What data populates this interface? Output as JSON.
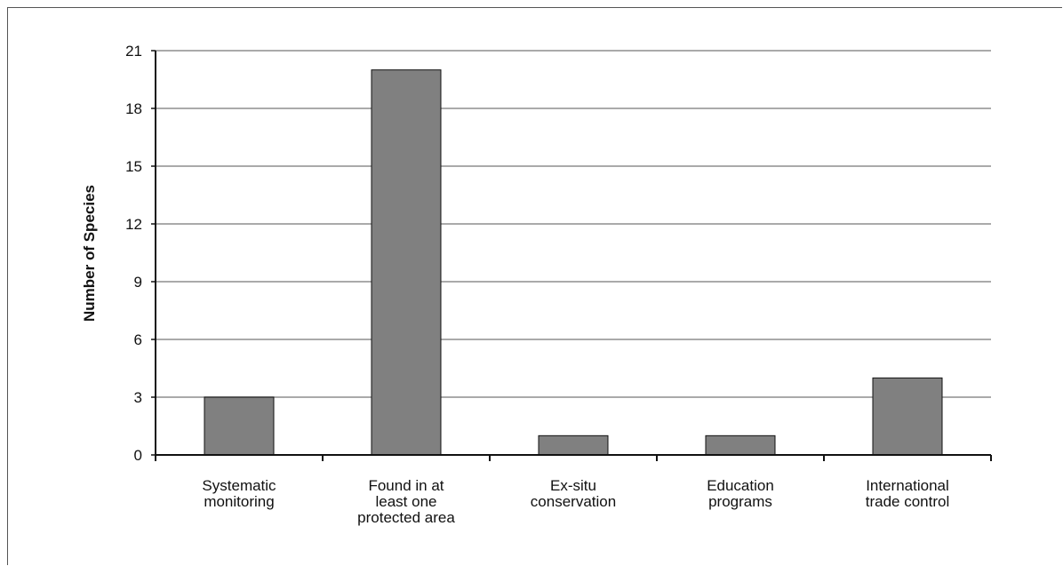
{
  "chart_data": {
    "type": "bar",
    "title": "",
    "xlabel": "",
    "ylabel": "Number of Species",
    "ylim": [
      0,
      21
    ],
    "yticks": [
      0,
      3,
      6,
      9,
      12,
      15,
      18,
      21
    ],
    "grid": true,
    "categories": [
      [
        "Systematic",
        "monitoring"
      ],
      [
        "Found in at",
        "least one",
        "protected area"
      ],
      [
        "Ex-situ",
        "conservation"
      ],
      [
        "Education",
        "programs"
      ],
      [
        "International",
        "trade control"
      ]
    ],
    "values": [
      3,
      20,
      1,
      1,
      4
    ],
    "colors": {
      "bar": "#808080",
      "bar_edge": "#111111",
      "grid": "#aaaaaa",
      "axis": "#111111"
    }
  }
}
